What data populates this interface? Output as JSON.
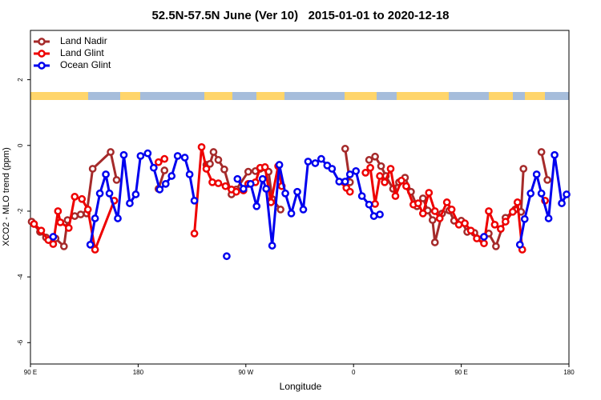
{
  "chart_data": {
    "type": "line",
    "title": "52.5N-57.5N June (Ver 10)   2015-01-01 to 2020-12-18",
    "xlabel": "Longitude",
    "ylabel": "XCO2 - MLO trend (ppm)",
    "xlim": [
      90,
      540
    ],
    "xticks": [
      {
        "value": 90,
        "label": "90 E"
      },
      {
        "value": 180,
        "label": "180"
      },
      {
        "value": 270,
        "label": "90 W"
      },
      {
        "value": 360,
        "label": "0"
      },
      {
        "value": 450,
        "label": "90 E"
      },
      {
        "value": 540,
        "label": "180"
      }
    ],
    "ylim": [
      -6.65,
      3.5
    ],
    "yticks": [
      2,
      0,
      -2,
      -4,
      -6
    ],
    "legend": "top-left",
    "series": [
      {
        "name": "Land Nadir",
        "color": "#a52a2a",
        "x": [
          91,
          98,
          103,
          111,
          118,
          121,
          127,
          132,
          137,
          142,
          157,
          162,
          null,
          197,
          202,
          null,
          237,
          240,
          243,
          247,
          252,
          258,
          262,
          272,
          278,
          282,
          289,
          292,
          299,
          null,
          353,
          357,
          null,
          373,
          378,
          383,
          387,
          393,
          398,
          403,
          408,
          413,
          418,
          422,
          426,
          428,
          434,
          440,
          444,
          450,
          455,
          461,
          467,
          473,
          479,
          487,
          495,
          500,
          502,
          null,
          517,
          522
        ],
        "values": [
          -2.32,
          -2.63,
          -2.8,
          -2.83,
          -3.07,
          -2.27,
          -2.15,
          -2.1,
          -2.07,
          -0.71,
          -0.2,
          -1.05,
          null,
          -1.32,
          -0.76,
          null,
          -0.59,
          -0.56,
          -0.2,
          -0.44,
          -0.73,
          -1.49,
          -1.34,
          -0.8,
          -0.78,
          -0.71,
          -0.8,
          -1.63,
          -1.95,
          null,
          -0.1,
          -1.12,
          null,
          -0.44,
          -0.34,
          -0.63,
          -0.93,
          -1.32,
          -1.12,
          -0.98,
          -1.41,
          -1.85,
          -1.61,
          -1.98,
          -2.27,
          -2.95,
          -2.07,
          -1.98,
          -2.29,
          -2.29,
          -2.63,
          -2.66,
          -2.85,
          -2.68,
          -3.07,
          -2.2,
          -1.95,
          -2.02,
          -0.71,
          null,
          -0.2,
          -1.05
        ]
      },
      {
        "name": "Land Glint",
        "color": "#ee0000",
        "x": [
          93,
          99,
          105,
          109,
          113,
          115,
          122,
          127,
          133,
          138,
          144,
          160,
          null,
          197,
          202,
          null,
          227,
          233,
          237,
          242,
          247,
          253,
          258,
          262,
          268,
          272,
          278,
          282,
          286,
          291,
          297,
          300,
          null,
          352,
          354,
          357,
          null,
          370,
          374,
          378,
          382,
          386,
          391,
          395,
          400,
          404,
          410,
          414,
          418,
          423,
          428,
          432,
          438,
          442,
          448,
          453,
          458,
          463,
          469,
          473,
          478,
          483,
          487,
          493,
          497,
          501,
          null,
          520
        ],
        "values": [
          -2.39,
          -2.59,
          -2.88,
          -3.0,
          -2.0,
          -2.34,
          -2.51,
          -1.56,
          -1.63,
          -1.95,
          -3.17,
          -1.68,
          null,
          -0.51,
          -0.41,
          null,
          -2.68,
          -0.05,
          -0.71,
          -1.12,
          -1.15,
          -1.24,
          -1.34,
          -1.41,
          -1.37,
          -1.17,
          -1.12,
          -0.68,
          -0.66,
          -1.73,
          -0.63,
          -1.24,
          null,
          -1.12,
          -1.29,
          -1.41,
          null,
          -0.83,
          -0.68,
          -1.78,
          -0.93,
          -1.12,
          -0.71,
          -1.54,
          -1.07,
          -1.24,
          -1.8,
          -1.76,
          -2.07,
          -1.44,
          -2.0,
          -2.22,
          -1.73,
          -1.95,
          -2.41,
          -2.37,
          -2.59,
          -2.83,
          -2.98,
          -2.0,
          -2.41,
          -2.54,
          -2.32,
          -2.02,
          -1.73,
          -3.17,
          null,
          -1.68
        ]
      },
      {
        "name": "Ocean Glint",
        "color": "#0000ee",
        "x": [
          109,
          null,
          140,
          144,
          148,
          153,
          156,
          163,
          168,
          173,
          178,
          182,
          188,
          193,
          198,
          203,
          208,
          213,
          219,
          223,
          227,
          null,
          254,
          null,
          263,
          268,
          274,
          279,
          284,
          287,
          292,
          298,
          303,
          308,
          313,
          318,
          322,
          328,
          333,
          338,
          342,
          348,
          353,
          357,
          362,
          367,
          373,
          377,
          382,
          null,
          469,
          null,
          499,
          503,
          508,
          513,
          517,
          523,
          528,
          534,
          538
        ],
        "values": [
          -2.78,
          null,
          -3.02,
          -2.22,
          -1.46,
          -0.88,
          -1.46,
          -2.22,
          -0.29,
          -1.76,
          -1.49,
          -0.32,
          -0.24,
          -0.68,
          -1.34,
          -1.17,
          -0.93,
          -0.32,
          -0.37,
          -0.88,
          -1.68,
          null,
          -3.37,
          null,
          -1.02,
          -1.32,
          -1.17,
          -1.85,
          -1.02,
          -1.32,
          -3.05,
          -0.59,
          -1.46,
          -2.07,
          -1.41,
          -1.95,
          -0.49,
          -0.54,
          -0.41,
          -0.61,
          -0.71,
          -1.1,
          -1.1,
          -0.88,
          -0.78,
          -1.54,
          -1.8,
          -2.15,
          -2.1,
          null,
          -2.78,
          null,
          -3.02,
          -2.24,
          -1.46,
          -0.88,
          -1.46,
          -2.22,
          -0.29,
          -1.76,
          -1.49
        ]
      }
    ]
  }
}
